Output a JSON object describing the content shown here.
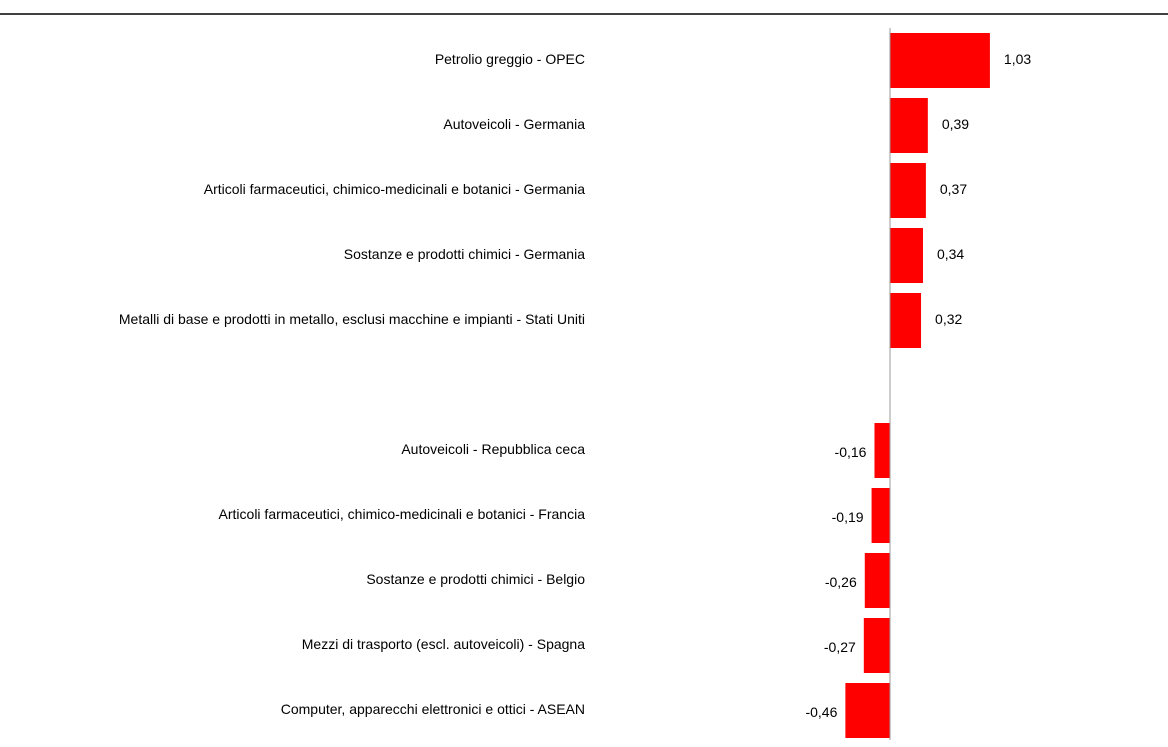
{
  "chart_data": {
    "type": "barh",
    "categories": [
      "Petrolio greggio - OPEC",
      "Autoveicoli - Germania",
      "Articoli farmaceutici, chimico-medicinali e botanici - Germania",
      "Sostanze e prodotti chimici - Germania",
      "Metalli di base e prodotti in metallo, esclusi macchine e impianti - Stati Uniti",
      null,
      "Autoveicoli - Repubblica ceca",
      "Articoli farmaceutici, chimico-medicinali e botanici - Francia",
      "Sostanze e prodotti chimici - Belgio",
      "Mezzi di trasporto (escl. autoveicoli) - Spagna",
      "Computer, apparecchi elettronici e ottici - ASEAN"
    ],
    "values": [
      1.03,
      0.39,
      0.37,
      0.34,
      0.32,
      null,
      -0.16,
      -0.19,
      -0.26,
      -0.27,
      -0.46
    ],
    "value_labels": [
      "1,03",
      "0,39",
      "0,37",
      "0,34",
      "0,32",
      null,
      "-0,16",
      "-0,19",
      "-0,26",
      "-0,27",
      "-0,46"
    ],
    "color": "#ff0000",
    "xlim": [
      -0.5,
      1.5
    ]
  }
}
